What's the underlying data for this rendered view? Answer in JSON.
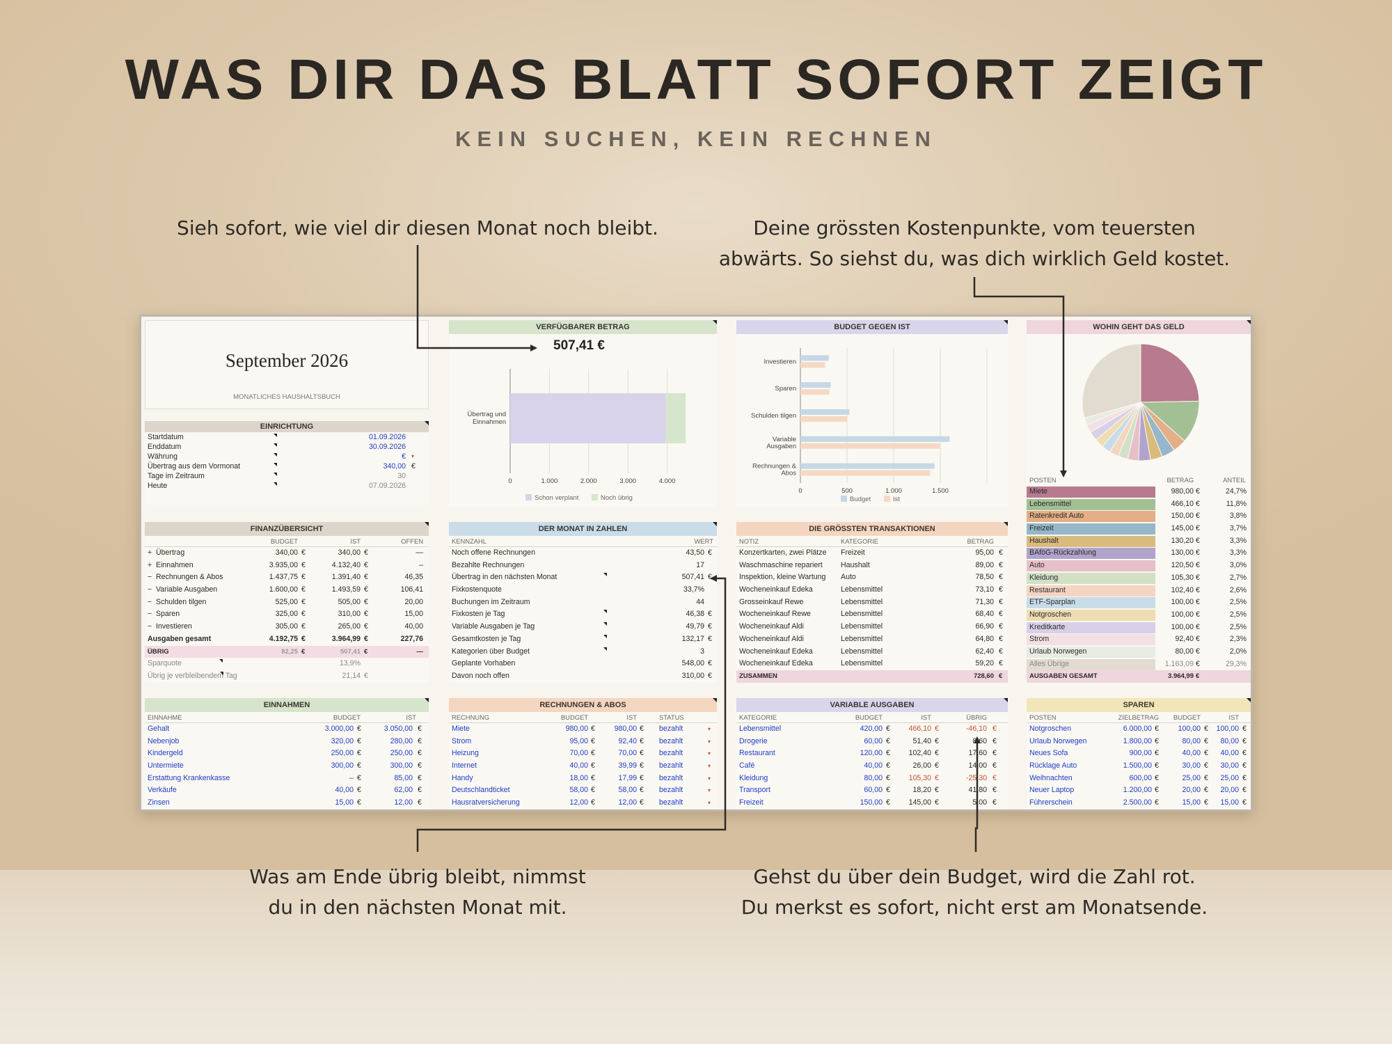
{
  "headline": "WAS DIR DAS BLATT SOFORT ZEIGT",
  "subline": "KEIN SUCHEN, KEIN RECHNEN",
  "callouts": {
    "top_left": "Sieh sofort, wie viel dir diesen Monat noch bleibt.",
    "top_right_1": "Deine grössten Kostenpunkte, vom teuersten",
    "top_right_2": "abwärts. So siehst du, was dich wirklich Geld kostet.",
    "bottom_left_1": "Was am Ende übrig bleibt, nimmst",
    "bottom_left_2": "du in den nächsten Monat mit.",
    "bottom_right_1": "Gehst du über dein Budget, wird die Zahl rot.",
    "bottom_right_2": "Du merkst es sofort, nicht erst am Monatsende."
  },
  "title_card": {
    "month": "September 2026",
    "subtitle": "MONATLICHES HAUSHALTSBUCH"
  },
  "einrichtung": {
    "title": "EINRICHTUNG",
    "rows": [
      {
        "label": "Startdatum",
        "value": "01.09.2026",
        "color": "blue",
        "sym": ""
      },
      {
        "label": "Enddatum",
        "value": "30.09.2026",
        "color": "blue",
        "sym": ""
      },
      {
        "label": "Währung",
        "value": "€",
        "color": "blue",
        "sym": "▾"
      },
      {
        "label": "Übertrag aus dem Vormonat",
        "value": "340,00",
        "color": "blue",
        "sym": "€"
      },
      {
        "label": "Tage im Zeitraum",
        "value": "30",
        "color": "grey",
        "sym": ""
      },
      {
        "label": "Heute",
        "value": "07.09.2026",
        "color": "grey",
        "sym": ""
      }
    ]
  },
  "finanz": {
    "title": "FINANZÜBERSICHT",
    "cols": [
      "BUDGET",
      "IST",
      "OFFEN"
    ],
    "rows": [
      {
        "sign": "+",
        "label": "Übertrag",
        "budget": "340,00",
        "ist": "340,00",
        "offen": "—",
        "style": ""
      },
      {
        "sign": "+",
        "label": "Einnahmen",
        "budget": "3.935,00",
        "ist": "4.132,40",
        "offen": "–",
        "style": ""
      },
      {
        "sign": "−",
        "label": "Rechnungen & Abos",
        "budget": "1.437,75",
        "ist": "1.391,40",
        "offen": "46,35",
        "style": ""
      },
      {
        "sign": "−",
        "label": "Variable Ausgaben",
        "budget": "1.600,00",
        "ist": "1.493,59",
        "offen": "106,41",
        "style": ""
      },
      {
        "sign": "−",
        "label": "Schulden tilgen",
        "budget": "525,00",
        "ist": "505,00",
        "offen": "20,00",
        "style": ""
      },
      {
        "sign": "−",
        "label": "Sparen",
        "budget": "325,00",
        "ist": "310,00",
        "offen": "15,00",
        "style": ""
      },
      {
        "sign": "−",
        "label": "Investieren",
        "budget": "305,00",
        "ist": "265,00",
        "offen": "40,00",
        "style": ""
      },
      {
        "sign": "",
        "label": "Ausgaben gesamt",
        "budget": "4.192,75",
        "ist": "3.964,99",
        "offen": "227,76",
        "style": "bold"
      },
      {
        "sign": "",
        "label": "ÜBRIG",
        "budget": "82,25",
        "ist": "507,41",
        "offen": "—",
        "style": "ubrig"
      }
    ],
    "extra": [
      {
        "label": "Sparquote",
        "value": "13,9%"
      },
      {
        "label": "Übrig je verbleibendem Tag",
        "value": "21,14",
        "sym": "€"
      }
    ]
  },
  "einnahmen": {
    "title": "EINNAHMEN",
    "cols": [
      "EINNAHME",
      "BUDGET",
      "IST"
    ],
    "rows": [
      {
        "name": "Gehalt",
        "budget": "3.000,00",
        "ist": "3.050,00"
      },
      {
        "name": "Nebenjob",
        "budget": "320,00",
        "ist": "280,00"
      },
      {
        "name": "Kindergeld",
        "budget": "250,00",
        "ist": "250,00"
      },
      {
        "name": "Untermiete",
        "budget": "300,00",
        "ist": "300,00"
      },
      {
        "name": "Erstattung Krankenkasse",
        "budget": "–",
        "ist": "85,00"
      },
      {
        "name": "Verkäufe",
        "budget": "40,00",
        "ist": "62,00"
      },
      {
        "name": "Zinsen",
        "budget": "15,00",
        "ist": "12,00"
      }
    ]
  },
  "verfuegbar": {
    "title": "VERFÜGBARER BETRAG",
    "amount": "507,41 €"
  },
  "chart_verf": {
    "type": "bar",
    "orientation": "horizontal",
    "stacked": true,
    "categories": [
      "Übertrag und Einnahmen"
    ],
    "series": [
      {
        "name": "Schon verplant",
        "values": [
          3964.99
        ],
        "color": "#d8d3ea"
      },
      {
        "name": "Noch übrig",
        "values": [
          507.41
        ],
        "color": "#d6e6cc"
      }
    ],
    "xticks": [
      "0",
      "1.000",
      "2.000",
      "3.000",
      "4.000"
    ],
    "xlim": [
      0,
      5000
    ],
    "legend": "bottom"
  },
  "monat": {
    "title": "DER MONAT IN ZAHLEN",
    "cols": [
      "KENNZAHL",
      "WERT"
    ],
    "rows": [
      {
        "label": "Noch offene Rechnungen",
        "value": "43,50",
        "sym": "€"
      },
      {
        "label": "Bezahlte Rechnungen",
        "value": "17",
        "sym": ""
      },
      {
        "label": "Übertrag in den nächsten Monat",
        "value": "507,41",
        "sym": "€"
      },
      {
        "label": "Fixkostenquote",
        "value": "33,7%",
        "sym": ""
      },
      {
        "label": "Buchungen im Zeitraum",
        "value": "44",
        "sym": ""
      },
      {
        "label": "Fixkosten je Tag",
        "value": "46,38",
        "sym": "€"
      },
      {
        "label": "Variable Ausgaben je Tag",
        "value": "49,79",
        "sym": "€"
      },
      {
        "label": "Gesamtkosten je Tag",
        "value": "132,17",
        "sym": "€"
      },
      {
        "label": "Kategorien über Budget",
        "value": "3",
        "sym": ""
      },
      {
        "label": "Geplante Vorhaben",
        "value": "548,00",
        "sym": "€"
      },
      {
        "label": "Davon noch offen",
        "value": "310,00",
        "sym": "€"
      }
    ]
  },
  "rechnungen": {
    "title": "RECHNUNGEN & ABOS",
    "cols": [
      "RECHNUNG",
      "BUDGET",
      "IST",
      "STATUS"
    ],
    "rows": [
      {
        "name": "Miete",
        "budget": "980,00",
        "ist": "980,00",
        "status": "bezahlt"
      },
      {
        "name": "Strom",
        "budget": "95,00",
        "ist": "92,40",
        "status": "bezahlt"
      },
      {
        "name": "Heizung",
        "budget": "70,00",
        "ist": "70,00",
        "status": "bezahlt"
      },
      {
        "name": "Internet",
        "budget": "40,00",
        "ist": "39,99",
        "status": "bezahlt"
      },
      {
        "name": "Handy",
        "budget": "18,00",
        "ist": "17,99",
        "status": "bezahlt"
      },
      {
        "name": "Deutschlandticket",
        "budget": "58,00",
        "ist": "58,00",
        "status": "bezahlt"
      },
      {
        "name": "Hausratversicherung",
        "budget": "12,00",
        "ist": "12,00",
        "status": "bezahlt"
      }
    ]
  },
  "budget_ist": {
    "title": "BUDGET GEGEN IST"
  },
  "chart_bi": {
    "type": "bar",
    "orientation": "horizontal",
    "categories": [
      "Investieren",
      "Sparen",
      "Schulden tilgen",
      "Variable Ausgaben",
      "Rechnungen & Abos"
    ],
    "series": [
      {
        "name": "Budget",
        "values": [
          305,
          325,
          525,
          1600,
          1437.75
        ],
        "color": "#c6d8e6"
      },
      {
        "name": "Ist",
        "values": [
          265,
          310,
          505,
          1493.59,
          1391.4
        ],
        "color": "#f5d9c3"
      }
    ],
    "xticks": [
      "0",
      "500",
      "1.000",
      "1.500"
    ],
    "xlim": [
      0,
      2000
    ],
    "legend": "bottom"
  },
  "transaktionen": {
    "title": "DIE GRÖSSTEN TRANSAKTIONEN",
    "cols": [
      "NOTIZ",
      "KATEGORIE",
      "BETRAG"
    ],
    "rows": [
      {
        "note": "Konzertkarten, zwei Plätze",
        "cat": "Freizeit",
        "amt": "95,00"
      },
      {
        "note": "Waschmaschine repariert",
        "cat": "Haushalt",
        "amt": "89,00"
      },
      {
        "note": "Inspektion, kleine Wartung",
        "cat": "Auto",
        "amt": "78,50"
      },
      {
        "note": "Wocheneinkauf Edeka",
        "cat": "Lebensmittel",
        "amt": "73,10"
      },
      {
        "note": "Grosseinkauf Rewe",
        "cat": "Lebensmittel",
        "amt": "71,30"
      },
      {
        "note": "Wocheneinkauf Rewe",
        "cat": "Lebensmittel",
        "amt": "68,40"
      },
      {
        "note": "Wocheneinkauf Aldi",
        "cat": "Lebensmittel",
        "amt": "66,90"
      },
      {
        "note": "Wocheneinkauf Aldi",
        "cat": "Lebensmittel",
        "amt": "64,80"
      },
      {
        "note": "Wocheneinkauf Edeka",
        "cat": "Lebensmittel",
        "amt": "62,40"
      },
      {
        "note": "Wocheneinkauf Edeka",
        "cat": "Lebensmittel",
        "amt": "59,20"
      }
    ],
    "total_label": "ZUSAMMEN",
    "total": "728,60"
  },
  "variable": {
    "title": "VARIABLE AUSGABEN",
    "cols": [
      "KATEGORIE",
      "BUDGET",
      "IST",
      "ÜBRIG"
    ],
    "rows": [
      {
        "name": "Lebensmittel",
        "budget": "420,00",
        "ist": "466,10",
        "rest": "-46,10",
        "over": true
      },
      {
        "name": "Drogerie",
        "budget": "60,00",
        "ist": "51,40",
        "rest": "8,60",
        "over": false
      },
      {
        "name": "Restaurant",
        "budget": "120,00",
        "ist": "102,40",
        "rest": "17,60",
        "over": false
      },
      {
        "name": "Café",
        "budget": "40,00",
        "ist": "26,00",
        "rest": "14,00",
        "over": false
      },
      {
        "name": "Kleidung",
        "budget": "80,00",
        "ist": "105,30",
        "rest": "-25,30",
        "over": true
      },
      {
        "name": "Transport",
        "budget": "60,00",
        "ist": "18,20",
        "rest": "41,80",
        "over": false
      },
      {
        "name": "Freizeit",
        "budget": "150,00",
        "ist": "145,00",
        "rest": "5,00",
        "over": false
      }
    ]
  },
  "wohin": {
    "title": "WOHIN GEHT DAS GELD",
    "cols": [
      "POSTEN",
      "BETRAG",
      "ANTEIL"
    ],
    "rows": [
      {
        "name": "Miete",
        "amt": "980,00",
        "pct": "24,7%",
        "color": "#b87a8e"
      },
      {
        "name": "Lebensmittel",
        "amt": "466,10",
        "pct": "11,8%",
        "color": "#a3c095"
      },
      {
        "name": "Ratenkredit Auto",
        "amt": "150,00",
        "pct": "3,8%",
        "color": "#e4ae86"
      },
      {
        "name": "Freizeit",
        "amt": "145,00",
        "pct": "3,7%",
        "color": "#95b7c9"
      },
      {
        "name": "Haushalt",
        "amt": "130,20",
        "pct": "3,3%",
        "color": "#d9bb7d"
      },
      {
        "name": "BAföG-Rückzahlung",
        "amt": "130,00",
        "pct": "3,3%",
        "color": "#b0a4cc"
      },
      {
        "name": "Auto",
        "amt": "120,50",
        "pct": "3,0%",
        "color": "#e6bfc9"
      },
      {
        "name": "Kleidung",
        "amt": "105,30",
        "pct": "2,7%",
        "color": "#d2e1c6"
      },
      {
        "name": "Restaurant",
        "amt": "102,40",
        "pct": "2,6%",
        "color": "#f3d5c2"
      },
      {
        "name": "ETF-Sparplan",
        "amt": "100,00",
        "pct": "2,5%",
        "color": "#c8dce8"
      },
      {
        "name": "Notgroschen",
        "amt": "100,00",
        "pct": "2,5%",
        "color": "#eedcb2"
      },
      {
        "name": "Kreditkarte",
        "amt": "100,00",
        "pct": "2,5%",
        "color": "#d8d0e8"
      },
      {
        "name": "Strom",
        "amt": "92,40",
        "pct": "2,3%",
        "color": "#f2e0e4"
      },
      {
        "name": "Urlaub Norwegen",
        "amt": "80,00",
        "pct": "2,0%",
        "color": "#e8ece2"
      },
      {
        "name": "Alles Übrige",
        "amt": "1.163,09",
        "pct": "29,3%",
        "color": "#e2dbd0"
      }
    ],
    "total_label": "AUSGABEN GESAMT",
    "total": "3.964,99"
  },
  "chart_pie": {
    "type": "pie",
    "categories": [
      "Miete",
      "Lebensmittel",
      "Ratenkredit Auto",
      "Freizeit",
      "Haushalt",
      "BAföG-Rückzahlung",
      "Auto",
      "Kleidung",
      "Restaurant",
      "ETF-Sparplan",
      "Notgroschen",
      "Kreditkarte",
      "Strom",
      "Urlaub Norwegen",
      "Alles Übrige"
    ],
    "values": [
      24.7,
      11.8,
      3.8,
      3.7,
      3.3,
      3.3,
      3.0,
      2.7,
      2.6,
      2.5,
      2.5,
      2.5,
      2.3,
      2.0,
      29.3
    ]
  },
  "sparen": {
    "title": "SPAREN",
    "cols": [
      "POSTEN",
      "ZIELBETRAG",
      "BUDGET",
      "IST"
    ],
    "rows": [
      {
        "name": "Notgroschen",
        "ziel": "6.000,00",
        "budget": "100,00",
        "ist": "100,00"
      },
      {
        "name": "Urlaub Norwegen",
        "ziel": "1.800,00",
        "budget": "80,00",
        "ist": "80,00"
      },
      {
        "name": "Neues Sofa",
        "ziel": "900,00",
        "budget": "40,00",
        "ist": "40,00"
      },
      {
        "name": "Rücklage Auto",
        "ziel": "1.500,00",
        "budget": "30,00",
        "ist": "30,00"
      },
      {
        "name": "Weihnachten",
        "ziel": "600,00",
        "budget": "25,00",
        "ist": "25,00"
      },
      {
        "name": "Neuer Laptop",
        "ziel": "1.200,00",
        "budget": "20,00",
        "ist": "20,00"
      },
      {
        "name": "Führerschein",
        "ziel": "2.500,00",
        "budget": "15,00",
        "ist": "15,00"
      }
    ]
  },
  "colors": {
    "green_hdr": "#d6e4cc",
    "purple_hdr": "#d9d5eb",
    "pink_hdr": "#efd5dc",
    "tan_hdr": "#dcd5cb",
    "blue_hdr": "#c9dce8",
    "orange_hdr": "#f4d6c0",
    "yellow_hdr": "#f2e6b8",
    "over_budget": "#c0533a",
    "link_blue": "#1f3cc8"
  },
  "currency": "€"
}
